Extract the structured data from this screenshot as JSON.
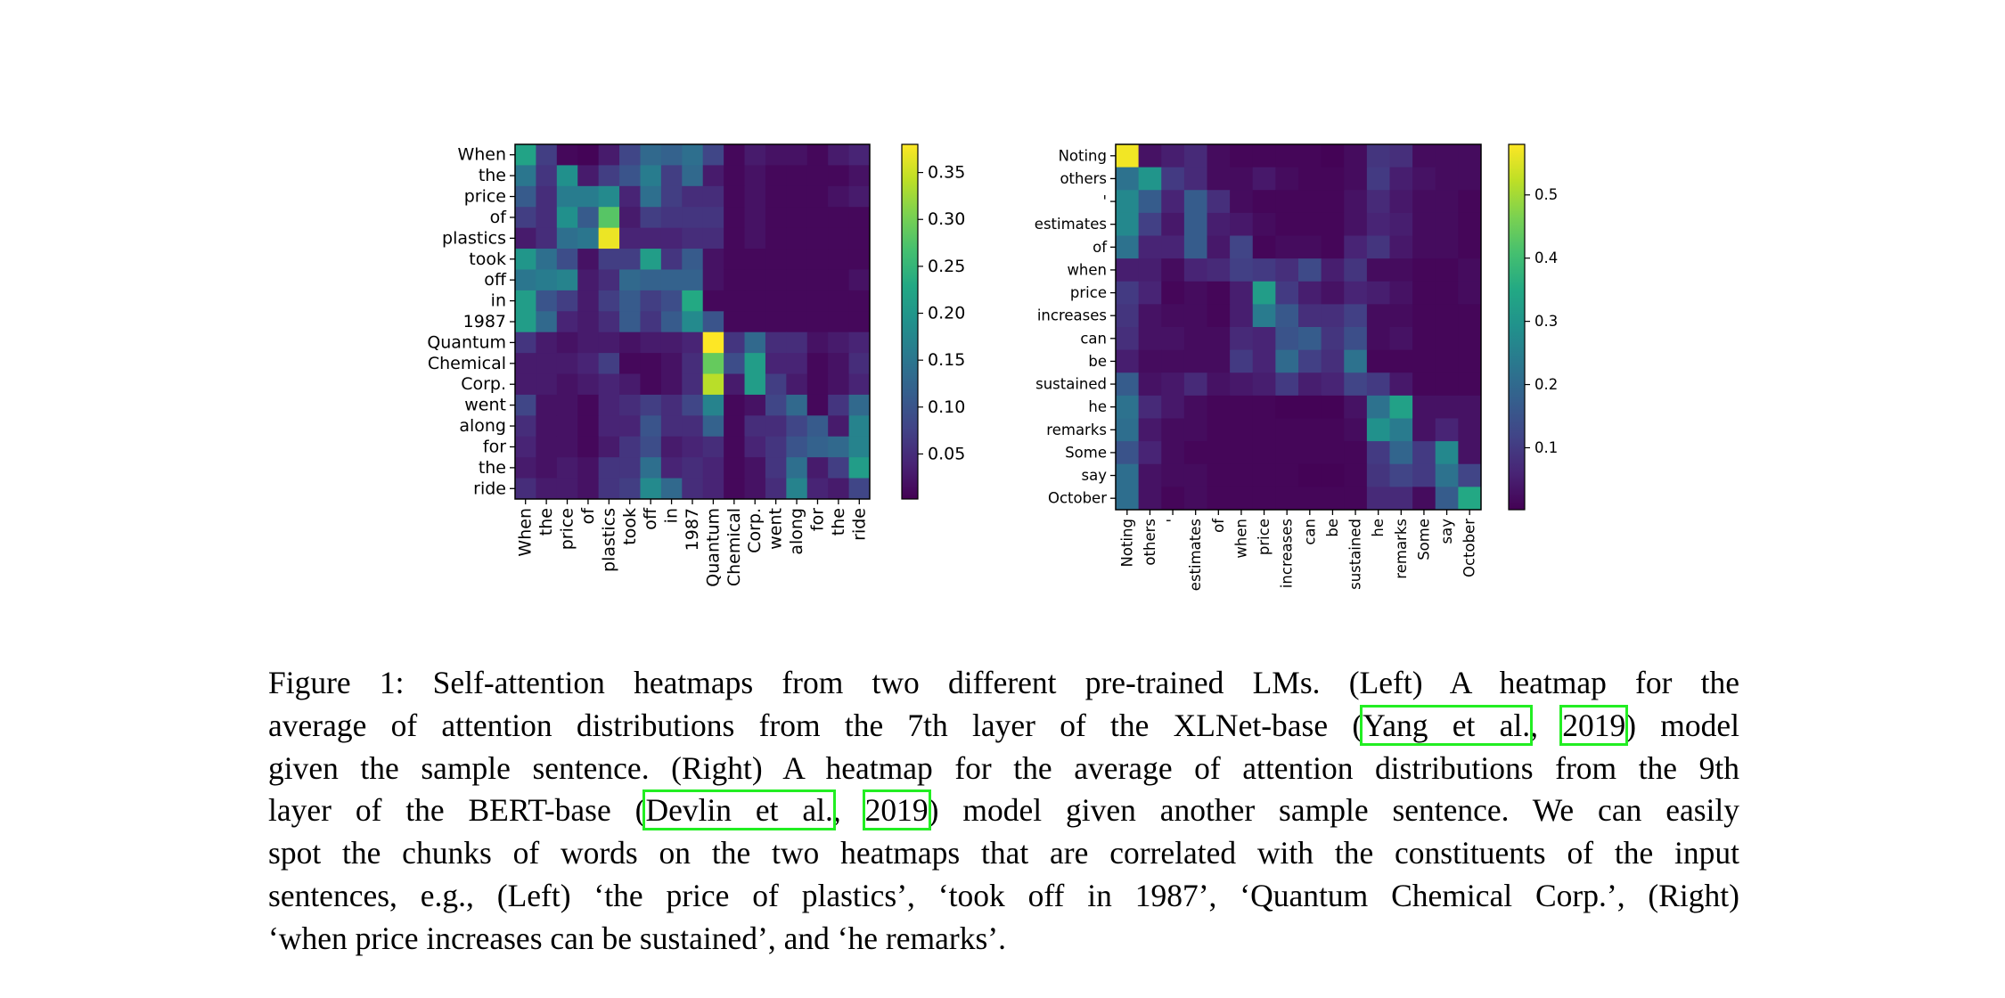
{
  "chart_data": [
    {
      "type": "heatmap",
      "title": "",
      "colormap": "viridis",
      "x_labels": [
        "When",
        "the",
        "price",
        "of",
        "plastics",
        "took",
        "off",
        "in",
        "1987",
        "Quantum",
        "Chemical",
        "Corp.",
        "went",
        "along",
        "for",
        "the",
        "ride"
      ],
      "y_labels": [
        "When",
        "the",
        "price",
        "of",
        "plastics",
        "took",
        "off",
        "in",
        "1987",
        "Quantum",
        "Chemical",
        "Corp.",
        "went",
        "along",
        "for",
        "the",
        "ride"
      ],
      "colorbar_range": [
        0.002,
        0.38
      ],
      "colorbar_ticks": [
        "0.05",
        "0.10",
        "0.15",
        "0.20",
        "0.25",
        "0.30",
        "0.35"
      ],
      "values": [
        [
          0.22,
          0.07,
          0.01,
          0.005,
          0.03,
          0.08,
          0.13,
          0.12,
          0.14,
          0.08,
          0.01,
          0.03,
          0.02,
          0.02,
          0.01,
          0.03,
          0.04
        ],
        [
          0.15,
          0.06,
          0.19,
          0.03,
          0.07,
          0.1,
          0.16,
          0.07,
          0.13,
          0.03,
          0.01,
          0.02,
          0.01,
          0.01,
          0.01,
          0.01,
          0.02
        ],
        [
          0.11,
          0.05,
          0.16,
          0.16,
          0.18,
          0.04,
          0.14,
          0.07,
          0.05,
          0.05,
          0.01,
          0.02,
          0.01,
          0.01,
          0.01,
          0.02,
          0.03
        ],
        [
          0.07,
          0.05,
          0.19,
          0.11,
          0.28,
          0.03,
          0.07,
          0.06,
          0.06,
          0.06,
          0.01,
          0.02,
          0.01,
          0.01,
          0.01,
          0.01,
          0.01
        ],
        [
          0.03,
          0.05,
          0.14,
          0.15,
          0.37,
          0.04,
          0.04,
          0.04,
          0.05,
          0.05,
          0.01,
          0.02,
          0.01,
          0.01,
          0.01,
          0.01,
          0.01
        ],
        [
          0.2,
          0.14,
          0.09,
          0.02,
          0.07,
          0.07,
          0.21,
          0.06,
          0.11,
          0.02,
          0.01,
          0.01,
          0.01,
          0.01,
          0.01,
          0.01,
          0.01
        ],
        [
          0.15,
          0.16,
          0.17,
          0.03,
          0.05,
          0.13,
          0.12,
          0.12,
          0.12,
          0.02,
          0.01,
          0.01,
          0.01,
          0.01,
          0.01,
          0.01,
          0.02
        ],
        [
          0.21,
          0.1,
          0.07,
          0.03,
          0.07,
          0.11,
          0.07,
          0.09,
          0.23,
          0.01,
          0.01,
          0.01,
          0.01,
          0.01,
          0.01,
          0.01,
          0.01
        ],
        [
          0.21,
          0.13,
          0.04,
          0.03,
          0.05,
          0.11,
          0.06,
          0.11,
          0.18,
          0.1,
          0.01,
          0.01,
          0.01,
          0.01,
          0.01,
          0.01,
          0.01
        ],
        [
          0.06,
          0.03,
          0.02,
          0.03,
          0.03,
          0.02,
          0.03,
          0.03,
          0.04,
          0.38,
          0.06,
          0.13,
          0.05,
          0.05,
          0.02,
          0.03,
          0.04
        ],
        [
          0.03,
          0.03,
          0.03,
          0.04,
          0.07,
          0.01,
          0.01,
          0.02,
          0.05,
          0.29,
          0.09,
          0.21,
          0.04,
          0.04,
          0.01,
          0.02,
          0.05
        ],
        [
          0.03,
          0.03,
          0.02,
          0.03,
          0.04,
          0.03,
          0.01,
          0.02,
          0.05,
          0.34,
          0.03,
          0.21,
          0.07,
          0.03,
          0.01,
          0.02,
          0.04
        ],
        [
          0.08,
          0.02,
          0.02,
          0.01,
          0.04,
          0.05,
          0.07,
          0.05,
          0.08,
          0.17,
          0.01,
          0.02,
          0.08,
          0.13,
          0.01,
          0.06,
          0.13
        ],
        [
          0.05,
          0.02,
          0.02,
          0.01,
          0.04,
          0.04,
          0.1,
          0.05,
          0.05,
          0.12,
          0.01,
          0.05,
          0.05,
          0.08,
          0.11,
          0.03,
          0.17
        ],
        [
          0.04,
          0.02,
          0.02,
          0.01,
          0.03,
          0.06,
          0.09,
          0.03,
          0.04,
          0.05,
          0.01,
          0.04,
          0.06,
          0.1,
          0.12,
          0.13,
          0.17
        ],
        [
          0.03,
          0.02,
          0.03,
          0.02,
          0.06,
          0.06,
          0.14,
          0.04,
          0.05,
          0.04,
          0.01,
          0.02,
          0.06,
          0.14,
          0.03,
          0.07,
          0.21
        ],
        [
          0.05,
          0.03,
          0.03,
          0.02,
          0.06,
          0.07,
          0.18,
          0.13,
          0.05,
          0.04,
          0.01,
          0.02,
          0.05,
          0.17,
          0.04,
          0.03,
          0.08
        ]
      ]
    },
    {
      "type": "heatmap",
      "title": "",
      "colormap": "viridis",
      "x_labels": [
        "Noting",
        "others",
        "'",
        "estimates",
        "of",
        "when",
        "price",
        "increases",
        "can",
        "be",
        "sustained",
        "he",
        "remarks",
        "Some",
        "say",
        "October"
      ],
      "y_labels": [
        "Noting",
        "others",
        "'",
        "estimates",
        "of",
        "when",
        "price",
        "increases",
        "can",
        "be",
        "sustained",
        "he",
        "remarks",
        "Some",
        "say",
        "October"
      ],
      "colorbar_range": [
        0.002,
        0.58
      ],
      "colorbar_ticks": [
        "0.1",
        "0.2",
        "0.3",
        "0.4",
        "0.5"
      ],
      "values": [
        [
          0.57,
          0.03,
          0.05,
          0.07,
          0.02,
          0.01,
          0.01,
          0.01,
          0.01,
          0.005,
          0.02,
          0.09,
          0.08,
          0.02,
          0.02,
          0.02
        ],
        [
          0.22,
          0.3,
          0.1,
          0.07,
          0.02,
          0.02,
          0.04,
          0.02,
          0.01,
          0.01,
          0.02,
          0.1,
          0.05,
          0.03,
          0.02,
          0.02
        ],
        [
          0.27,
          0.17,
          0.06,
          0.17,
          0.08,
          0.02,
          0.01,
          0.01,
          0.01,
          0.01,
          0.03,
          0.07,
          0.04,
          0.02,
          0.02,
          0.01
        ],
        [
          0.27,
          0.11,
          0.04,
          0.17,
          0.05,
          0.04,
          0.02,
          0.01,
          0.01,
          0.01,
          0.03,
          0.06,
          0.05,
          0.02,
          0.02,
          0.01
        ],
        [
          0.22,
          0.06,
          0.06,
          0.17,
          0.04,
          0.12,
          0.01,
          0.02,
          0.02,
          0.01,
          0.06,
          0.09,
          0.04,
          0.02,
          0.02,
          0.01
        ],
        [
          0.05,
          0.05,
          0.02,
          0.06,
          0.07,
          0.11,
          0.1,
          0.08,
          0.13,
          0.05,
          0.09,
          0.02,
          0.02,
          0.01,
          0.01,
          0.02
        ],
        [
          0.1,
          0.06,
          0.01,
          0.02,
          0.01,
          0.05,
          0.32,
          0.1,
          0.05,
          0.03,
          0.06,
          0.05,
          0.03,
          0.01,
          0.01,
          0.02
        ],
        [
          0.09,
          0.03,
          0.02,
          0.02,
          0.01,
          0.05,
          0.24,
          0.16,
          0.08,
          0.08,
          0.11,
          0.02,
          0.02,
          0.01,
          0.01,
          0.01
        ],
        [
          0.08,
          0.03,
          0.03,
          0.02,
          0.02,
          0.07,
          0.06,
          0.15,
          0.17,
          0.09,
          0.14,
          0.02,
          0.03,
          0.01,
          0.01,
          0.01
        ],
        [
          0.05,
          0.02,
          0.02,
          0.02,
          0.02,
          0.1,
          0.06,
          0.2,
          0.11,
          0.08,
          0.22,
          0.01,
          0.01,
          0.01,
          0.01,
          0.01
        ],
        [
          0.17,
          0.03,
          0.04,
          0.07,
          0.03,
          0.04,
          0.05,
          0.1,
          0.05,
          0.06,
          0.12,
          0.1,
          0.04,
          0.01,
          0.01,
          0.01
        ],
        [
          0.22,
          0.07,
          0.04,
          0.02,
          0.01,
          0.01,
          0.01,
          0.005,
          0.005,
          0.005,
          0.03,
          0.22,
          0.33,
          0.03,
          0.03,
          0.03
        ],
        [
          0.21,
          0.04,
          0.02,
          0.02,
          0.01,
          0.01,
          0.01,
          0.01,
          0.01,
          0.01,
          0.02,
          0.29,
          0.24,
          0.03,
          0.06,
          0.03
        ],
        [
          0.15,
          0.06,
          0.02,
          0.01,
          0.01,
          0.01,
          0.01,
          0.01,
          0.01,
          0.01,
          0.01,
          0.1,
          0.19,
          0.1,
          0.27,
          0.03
        ],
        [
          0.21,
          0.03,
          0.02,
          0.02,
          0.01,
          0.01,
          0.01,
          0.01,
          0.005,
          0.005,
          0.01,
          0.09,
          0.12,
          0.1,
          0.22,
          0.12
        ],
        [
          0.21,
          0.03,
          0.01,
          0.02,
          0.01,
          0.01,
          0.01,
          0.01,
          0.01,
          0.01,
          0.01,
          0.07,
          0.07,
          0.02,
          0.17,
          0.35
        ]
      ]
    }
  ],
  "caption": {
    "citation_box_color": "#22ee22",
    "lines": [
      [
        {
          "text": "Figure 1:  Self-attention heatmaps from two different pre-trained LMs.  (Left) A heatmap for the"
        }
      ],
      [
        {
          "text": "average of attention distributions from the 7th layer of the XLNet-base ("
        },
        {
          "text": "Yang et al.",
          "cite": true
        },
        {
          "text": ", "
        },
        {
          "text": "2019",
          "cite": true
        },
        {
          "text": ") model"
        }
      ],
      [
        {
          "text": "given the sample sentence. (Right) A heatmap for the average of attention distributions from the 9th"
        }
      ],
      [
        {
          "text": "layer of the BERT-base ("
        },
        {
          "text": "Devlin et al.",
          "cite": true
        },
        {
          "text": ", "
        },
        {
          "text": "2019",
          "cite": true
        },
        {
          "text": ") model given another sample sentence.  We can easily"
        }
      ],
      [
        {
          "text": "spot the chunks of words on the two heatmaps that are correlated with the constituents of the input"
        }
      ],
      [
        {
          "text": "sentences, e.g., (Left) ‘the price of plastics’, ‘took off in 1987’, ‘Quantum Chemical Corp.’, (Right)"
        }
      ],
      [
        {
          "text": "‘when price increases can be sustained’, and ‘he remarks’."
        }
      ]
    ]
  }
}
